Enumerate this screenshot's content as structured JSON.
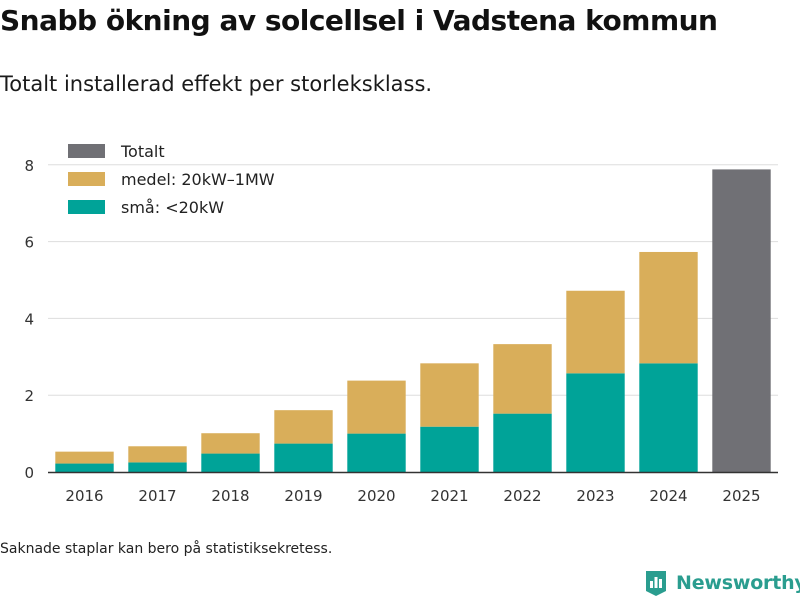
{
  "header": {
    "title": "Snabb ökning av solcellsel i Vadstena kommun",
    "subtitle": "Totalt installerad effekt per storleksklass."
  },
  "footnote": "Saknade staplar kan bero på statistiksekretess.",
  "brand": {
    "name": "Newsworthy",
    "icon": "newsworthy-logo-icon"
  },
  "chart_data": {
    "type": "bar",
    "stacked": true,
    "title": "",
    "xlabel": "",
    "ylabel": "",
    "ylim": [
      0,
      8.2
    ],
    "yticks": [
      0,
      2,
      4,
      6,
      8
    ],
    "grid": true,
    "legend_position": "top-left",
    "categories": [
      "2016",
      "2017",
      "2018",
      "2019",
      "2020",
      "2021",
      "2022",
      "2023",
      "2024",
      "2025"
    ],
    "series": [
      {
        "name": "små: <20kW",
        "color": "#00a398",
        "values": [
          0.22,
          0.25,
          0.48,
          0.74,
          1.0,
          1.18,
          1.52,
          2.57,
          2.83,
          null
        ]
      },
      {
        "name": "medel: 20kW–1MW",
        "color": "#d9ae5a",
        "values": [
          0.31,
          0.42,
          0.53,
          0.87,
          1.38,
          1.65,
          1.81,
          2.15,
          2.9,
          null
        ]
      },
      {
        "name": "Totalt",
        "color": "#707075",
        "values": [
          null,
          null,
          null,
          null,
          null,
          null,
          null,
          null,
          null,
          7.88
        ]
      }
    ],
    "legend_order": [
      "Totalt",
      "medel: 20kW–1MW",
      "små: <20kW"
    ]
  }
}
